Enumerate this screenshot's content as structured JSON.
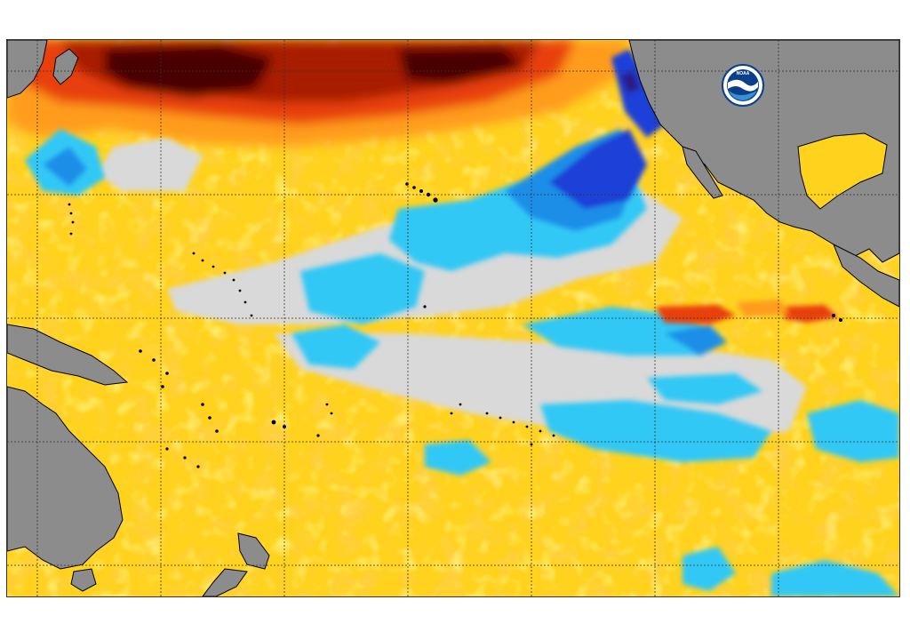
{
  "logo": {
    "text": "NOAA"
  },
  "colors": {
    "background": "#ffffff",
    "land": "#8c8c8c",
    "coastline": "#000000",
    "neutral": "#d9d9d9",
    "warm_light": "#fff03a",
    "warm": "#ffd21e",
    "warm_orange": "#ff9c1a",
    "warm_red": "#e8400e",
    "warm_darkred": "#a81a05",
    "warm_extreme": "#4a0402",
    "cool_light": "#30c8f5",
    "cool": "#1e8ee8",
    "cool_dark": "#1f3fd8",
    "cool_extreme": "#2c1a8a",
    "grid": "#333333",
    "logo_blue": "#0a3f8a",
    "logo_light": "#3a8fd6"
  }
}
